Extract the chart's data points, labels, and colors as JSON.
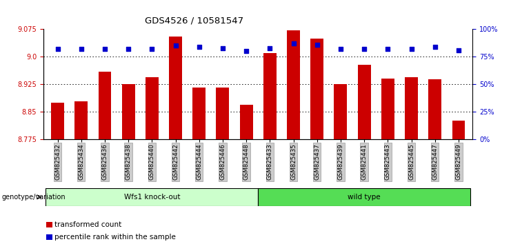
{
  "title": "GDS4526 / 10581547",
  "samples": [
    "GSM825432",
    "GSM825434",
    "GSM825436",
    "GSM825438",
    "GSM825440",
    "GSM825442",
    "GSM825444",
    "GSM825446",
    "GSM825448",
    "GSM825433",
    "GSM825435",
    "GSM825437",
    "GSM825439",
    "GSM825441",
    "GSM825443",
    "GSM825445",
    "GSM825447",
    "GSM825449"
  ],
  "transformed_counts": [
    8.875,
    8.878,
    8.96,
    8.925,
    8.945,
    9.055,
    8.915,
    8.915,
    8.868,
    9.01,
    9.073,
    9.05,
    8.925,
    8.978,
    8.94,
    8.945,
    8.938,
    8.825
  ],
  "percentile_ranks": [
    82,
    82,
    82,
    82,
    82,
    85,
    84,
    83,
    80,
    83,
    87,
    86,
    82,
    82,
    82,
    82,
    84,
    81
  ],
  "group1_label": "Wfs1 knock-out",
  "group2_label": "wild type",
  "group1_count": 9,
  "group2_count": 9,
  "ylim_left": [
    8.775,
    9.075
  ],
  "ylim_right": [
    0,
    100
  ],
  "yticks_left": [
    8.775,
    8.85,
    8.925,
    9.0,
    9.075
  ],
  "yticks_right": [
    0,
    25,
    50,
    75,
    100
  ],
  "bar_color": "#cc0000",
  "dot_color": "#0000cc",
  "group1_bg": "#ccffcc",
  "group2_bg": "#55dd55",
  "tick_label_bg": "#cccccc",
  "legend_bar_label": "transformed count",
  "legend_dot_label": "percentile rank within the sample",
  "genotype_label": "genotype/variation",
  "gridline_y": [
    8.85,
    8.925,
    9.0
  ],
  "bar_bottom": 8.775,
  "bar_width": 0.55
}
